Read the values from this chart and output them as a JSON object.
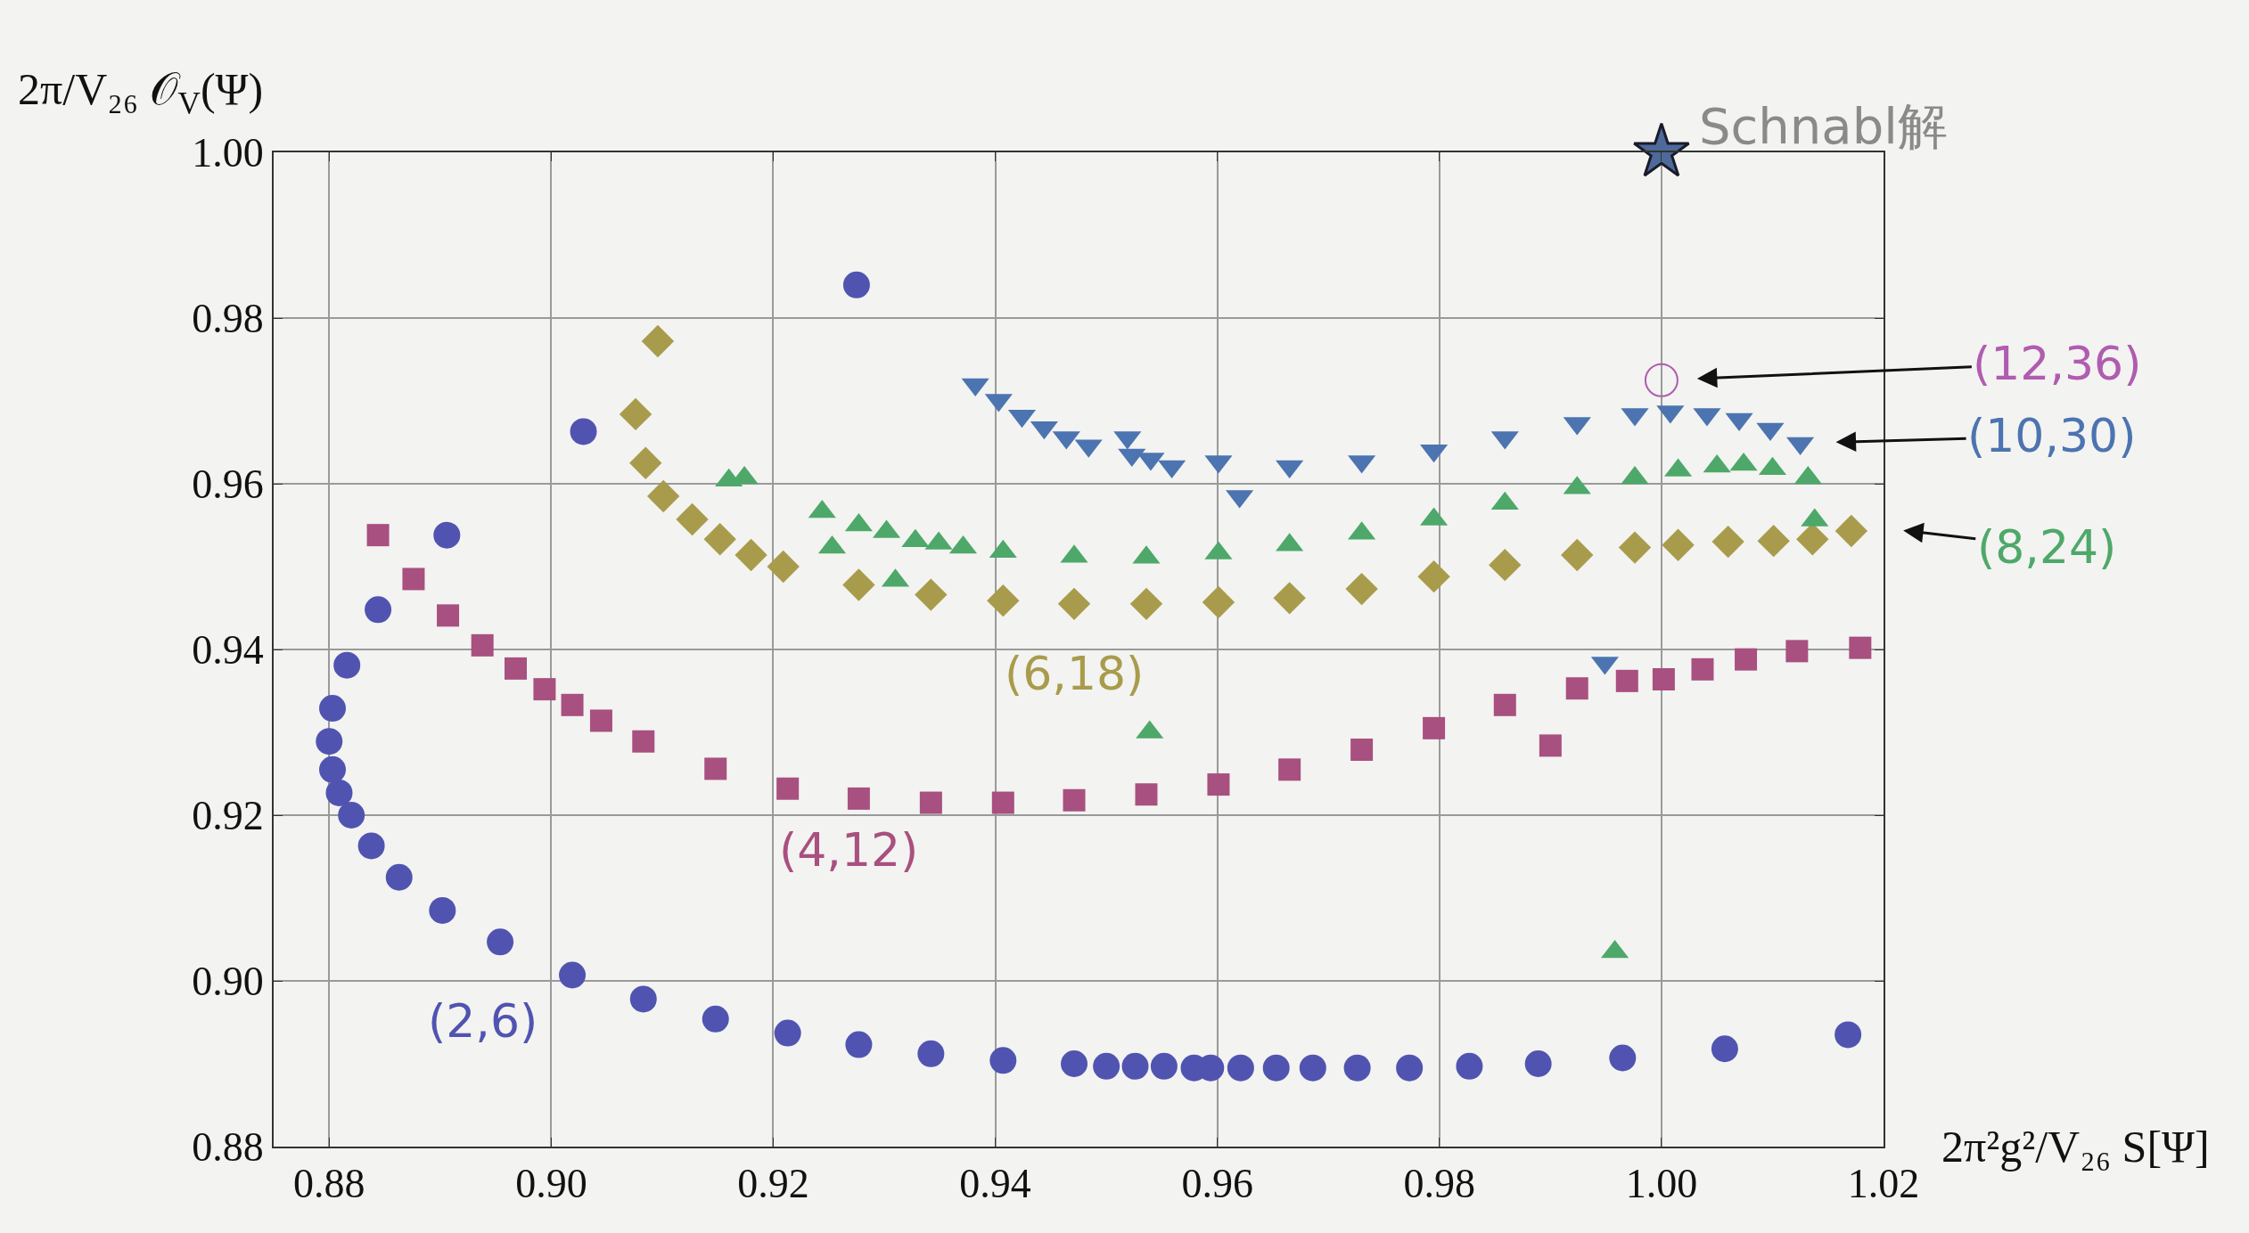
{
  "chart_data": {
    "type": "scatter",
    "xlabel": "2π²g²/V₂₆ S[Ψ]",
    "ylabel": "2π/V₂₆ 𝒪$_{V}$(Ψ)",
    "xlim": [
      0.875,
      1.02
    ],
    "ylim": [
      0.88,
      1.0
    ],
    "xticks": [
      0.88,
      {
        "value": 0.9,
        "label": "0.90"
      },
      0.92,
      0.94,
      0.96,
      0.98,
      {
        "value": 1.0,
        "label": "1.00"
      },
      1.02
    ],
    "yticks": [
      0.88,
      {
        "value": 0.9,
        "label": "0.90"
      },
      0.92,
      0.94,
      0.96,
      0.98,
      {
        "value": 1.0,
        "label": "1.00"
      }
    ],
    "grid": true,
    "legend": false,
    "series": [
      {
        "name": "(2,6)",
        "color": "#5054b0",
        "marker": "circle",
        "x": [
          0.9275,
          0.9029,
          0.8906,
          0.8844,
          0.8816,
          0.8803,
          0.88,
          0.8803,
          0.8809,
          0.882,
          0.8838,
          0.8863,
          0.8902,
          0.8954,
          0.9019,
          0.9083,
          0.9148,
          0.9213,
          0.9277,
          0.9342,
          0.9407,
          0.9471,
          0.95,
          0.9526,
          0.9552,
          0.9579,
          0.9594,
          0.9621,
          0.9653,
          0.9686,
          0.9726,
          0.9773,
          0.9827,
          0.9889,
          0.9965,
          1.0057,
          1.0168
        ],
        "values": [
          0.984,
          0.9663,
          0.9538,
          0.9448,
          0.9381,
          0.9329,
          0.9289,
          0.9255,
          0.9227,
          0.92,
          0.9163,
          0.9125,
          0.9085,
          0.9047,
          0.9007,
          0.8978,
          0.8954,
          0.8937,
          0.8923,
          0.8912,
          0.8904,
          0.89,
          0.8897,
          0.8897,
          0.8897,
          0.8895,
          0.8895,
          0.8895,
          0.8895,
          0.8895,
          0.8895,
          0.8895,
          0.8897,
          0.89,
          0.8907,
          0.8918,
          0.8935
        ]
      },
      {
        "name": "(4,12)",
        "color": "#a8507f",
        "marker": "square",
        "x": [
          0.8844,
          0.8876,
          0.8907,
          0.8938,
          0.8968,
          0.8994,
          0.9019,
          0.9045,
          0.9083,
          0.9148,
          0.9213,
          0.9277,
          0.9342,
          0.9407,
          0.9471,
          0.9536,
          0.9601,
          0.9665,
          0.973,
          0.9795,
          0.9859,
          0.9924,
          0.9969,
          1.0002,
          1.0037,
          1.0076,
          1.0122,
          1.0179,
          0.99
        ],
        "values": [
          0.9538,
          0.9485,
          0.9441,
          0.9405,
          0.9377,
          0.9352,
          0.9333,
          0.9314,
          0.9289,
          0.9256,
          0.9232,
          0.922,
          0.9215,
          0.9215,
          0.9218,
          0.9225,
          0.9237,
          0.9255,
          0.9279,
          0.9305,
          0.9333,
          0.9353,
          0.9362,
          0.9364,
          0.9376,
          0.9388,
          0.9398,
          0.9402,
          0.9284
        ]
      },
      {
        "name": "(6,18)",
        "color": "#a89c4c",
        "marker": "diamond",
        "x": [
          0.9096,
          0.9076,
          0.9085,
          0.9101,
          0.9127,
          0.9152,
          0.918,
          0.9209,
          0.9277,
          0.9342,
          0.9407,
          0.9471,
          0.9536,
          0.9601,
          0.9665,
          0.973,
          0.9795,
          0.9859,
          0.9924,
          0.9976,
          1.0015,
          1.006,
          1.0101,
          1.0136,
          1.0171
        ],
        "values": [
          0.9772,
          0.9684,
          0.9625,
          0.9585,
          0.9557,
          0.9533,
          0.9514,
          0.95,
          0.9478,
          0.9466,
          0.9459,
          0.9455,
          0.9455,
          0.9457,
          0.9462,
          0.9473,
          0.9488,
          0.9502,
          0.9514,
          0.9523,
          0.9526,
          0.953,
          0.9531,
          0.9533,
          0.9543
        ]
      },
      {
        "name": "(8,24)",
        "color": "#4ea86a",
        "marker": "triangle",
        "x": [
          0.9174,
          0.916,
          0.9244,
          0.9253,
          0.9277,
          0.9302,
          0.931,
          0.9328,
          0.9349,
          0.9371,
          0.9407,
          0.9471,
          0.9536,
          0.9601,
          0.9665,
          0.973,
          0.9795,
          0.9859,
          0.9924,
          0.9976,
          1.0015,
          1.005,
          1.0074,
          1.01,
          1.0132,
          0.9539,
          0.9958,
          1.0138
        ],
        "values": [
          0.9607,
          0.9604,
          0.9566,
          0.9523,
          0.955,
          0.9542,
          0.9483,
          0.9531,
          0.9528,
          0.9523,
          0.9518,
          0.9512,
          0.9511,
          0.9516,
          0.9526,
          0.954,
          0.9557,
          0.9576,
          0.9595,
          0.9607,
          0.9616,
          0.9621,
          0.9623,
          0.9618,
          0.9607,
          0.93,
          0.9035,
          0.9556
        ]
      },
      {
        "name": "(10,30)",
        "color": "#4c74b0",
        "marker": "triangle-down",
        "x": [
          0.9382,
          0.9403,
          0.9424,
          0.9444,
          0.9464,
          0.9484,
          0.9519,
          0.9523,
          0.954,
          0.9559,
          0.9601,
          0.9665,
          0.973,
          0.9795,
          0.9859,
          0.9924,
          0.9976,
          1.0008,
          1.0041,
          1.007,
          1.0098,
          0.962,
          0.9949,
          1.0125
        ],
        "values": [
          0.972,
          0.9701,
          0.9682,
          0.9668,
          0.9656,
          0.9646,
          0.9656,
          0.9635,
          0.963,
          0.9621,
          0.9627,
          0.9621,
          0.9627,
          0.964,
          0.9656,
          0.9673,
          0.9684,
          0.9687,
          0.9684,
          0.9678,
          0.9666,
          0.9585,
          0.9384,
          0.9649
        ]
      },
      {
        "name": "(12,36)",
        "color": "#b05cb0",
        "marker": "circle-open",
        "x": [
          1.0
        ],
        "values": [
          0.9725
        ]
      },
      {
        "name": "Schnabl解",
        "color": "#4d6a9a",
        "marker": "star",
        "x": [
          1.0
        ],
        "values": [
          1.0
        ]
      }
    ]
  }
}
